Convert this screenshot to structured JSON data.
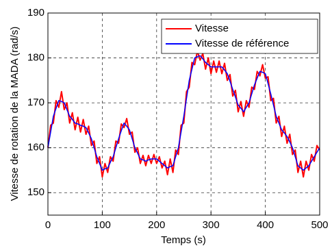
{
  "chart_data": {
    "type": "line",
    "xlabel": "Temps (s)",
    "ylabel": "Vitesse de rotation de la MADA (rad/s)",
    "x": [
      0,
      5,
      10,
      15,
      20,
      25,
      30,
      35,
      40,
      45,
      50,
      55,
      60,
      65,
      70,
      75,
      80,
      85,
      90,
      95,
      100,
      105,
      110,
      115,
      120,
      125,
      130,
      135,
      140,
      145,
      150,
      155,
      160,
      165,
      170,
      175,
      180,
      185,
      190,
      195,
      200,
      205,
      210,
      215,
      220,
      225,
      230,
      235,
      240,
      245,
      250,
      255,
      260,
      265,
      270,
      275,
      280,
      285,
      290,
      295,
      300,
      305,
      310,
      315,
      320,
      325,
      330,
      335,
      340,
      345,
      350,
      355,
      360,
      365,
      370,
      375,
      380,
      385,
      390,
      395,
      400,
      405,
      410,
      415,
      420,
      425,
      430,
      435,
      440,
      445,
      450,
      455,
      460,
      465,
      470,
      475,
      480,
      485,
      490,
      495,
      500
    ],
    "series": [
      {
        "name": "Vitesse",
        "color": "#ff0000",
        "values": [
          160,
          165,
          165.5,
          170.5,
          169,
          172.5,
          168.5,
          170,
          165.5,
          167.8,
          164,
          166.8,
          163.5,
          166.3,
          163,
          164.8,
          160.5,
          161.5,
          156.5,
          158,
          153.5,
          156.5,
          154.5,
          158,
          157,
          161.5,
          161,
          165.3,
          164.5,
          166.5,
          163,
          163.5,
          159,
          160,
          156.5,
          158.3,
          156,
          158.3,
          156.5,
          158.5,
          156.5,
          158,
          155.5,
          157,
          154,
          157.5,
          154.5,
          159.5,
          158.5,
          165,
          165.5,
          172.5,
          173.5,
          179,
          178.5,
          181.5,
          179.5,
          181,
          177.5,
          180,
          176.5,
          179.3,
          176.8,
          179.3,
          176.5,
          178.8,
          175,
          176.3,
          171.5,
          172.8,
          168,
          170.3,
          167,
          170.5,
          169,
          173.5,
          173,
          177,
          176,
          178.5,
          175.5,
          175.8,
          170.5,
          171,
          165.5,
          167,
          162.5,
          164.8,
          161,
          163,
          158.5,
          159.5,
          154.5,
          157,
          153.5,
          157,
          155,
          158.5,
          157,
          160.5,
          159.5
        ]
      },
      {
        "name": "Vitesse de référence",
        "color": "#0000ff",
        "values": [
          160,
          163.5,
          167,
          168.8,
          170.5,
          170.3,
          170,
          168.5,
          167,
          166.3,
          165.5,
          165.3,
          165,
          164.8,
          164.5,
          163.3,
          162,
          160,
          158,
          156.5,
          155,
          155.3,
          155.5,
          156.8,
          158,
          160,
          162,
          163.8,
          165.5,
          164.8,
          164,
          162,
          160,
          158.8,
          157.5,
          157.3,
          157,
          157.3,
          157.5,
          157.5,
          157.5,
          157,
          156.5,
          156,
          155.5,
          155.8,
          156,
          158,
          160,
          163.5,
          167,
          171,
          175,
          177.5,
          180,
          180.3,
          180.5,
          179.8,
          179,
          178.5,
          178,
          178,
          178,
          178,
          178,
          177.3,
          176.5,
          174.8,
          173,
          171.3,
          169.5,
          168.8,
          168,
          169,
          170,
          172,
          174,
          175.5,
          177,
          176.8,
          176.5,
          174.3,
          172,
          169.5,
          167,
          165.5,
          164,
          163.3,
          162.5,
          161.3,
          160,
          158,
          156,
          155.5,
          155,
          155.5,
          156,
          157,
          158,
          159,
          160
        ]
      }
    ],
    "xlim": [
      0,
      500
    ],
    "xticks": [
      0,
      100,
      200,
      300,
      400,
      500
    ],
    "ylim": [
      145,
      190
    ],
    "yticks": [
      150,
      160,
      170,
      180,
      190
    ],
    "grid": true,
    "legend": "upper right"
  }
}
